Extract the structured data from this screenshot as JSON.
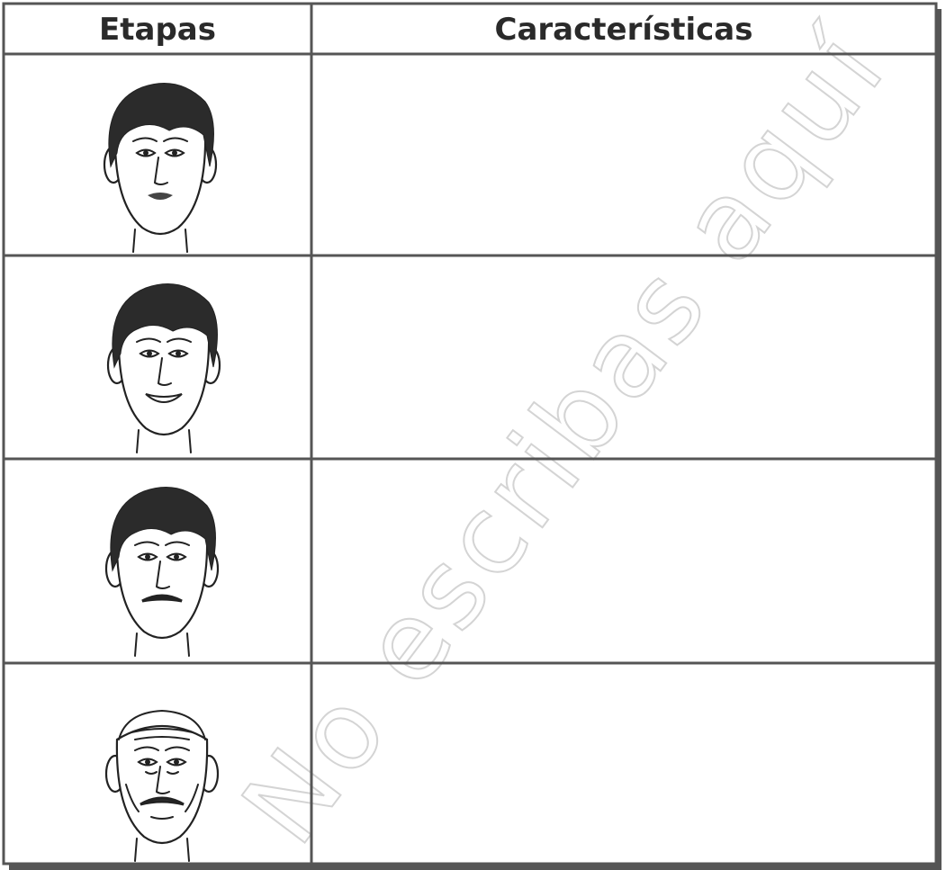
{
  "table": {
    "headers": [
      "Etapas",
      "Características"
    ]
  },
  "watermark": "No escribas aquí"
}
